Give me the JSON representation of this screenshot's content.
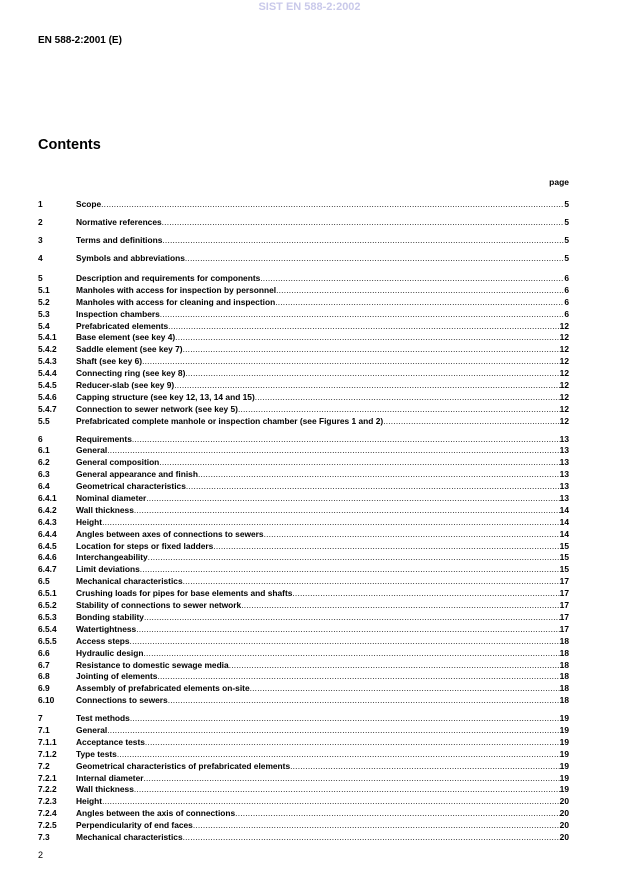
{
  "watermark": "SIST EN 588-2:2002",
  "doc_id": "EN 588-2:2001 (E)",
  "title": "Contents",
  "page_header": "page",
  "groups": [
    {
      "entries": [
        {
          "num": "1",
          "text": "Scope",
          "page": "5"
        },
        {
          "num": "2",
          "text": "Normative references",
          "page": "5"
        },
        {
          "num": "3",
          "text": "Terms and definitions",
          "page": "5"
        },
        {
          "num": "4",
          "text": "Symbols and abbreviations",
          "page": "5"
        }
      ]
    },
    {
      "entries": [
        {
          "num": "5",
          "text": "Description and requirements for components",
          "page": "6"
        },
        {
          "num": "5.1",
          "text": "Manholes with access for inspection by personnel",
          "page": "6"
        },
        {
          "num": "5.2",
          "text": "Manholes with access for cleaning and inspection",
          "page": "6"
        },
        {
          "num": "5.3",
          "text": "Inspection chambers",
          "page": "6"
        },
        {
          "num": "5.4",
          "text": "Prefabricated elements",
          "page": "12"
        },
        {
          "num": "5.4.1",
          "text": "Base element (see key 4)",
          "page": "12"
        },
        {
          "num": "5.4.2",
          "text": "Saddle element (see key 7)",
          "page": "12"
        },
        {
          "num": "5.4.3",
          "text": "Shaft (see key 6)",
          "page": "12"
        },
        {
          "num": "5.4.4",
          "text": "Connecting ring (see key 8)",
          "page": "12"
        },
        {
          "num": "5.4.5",
          "text": "Reducer-slab (see key 9)",
          "page": "12"
        },
        {
          "num": "5.4.6",
          "text": "Capping structure (see key 12, 13, 14 and 15)",
          "page": "12"
        },
        {
          "num": "5.4.7",
          "text": "Connection to sewer network (see key 5)",
          "page": "12"
        },
        {
          "num": "5.5",
          "text": "Prefabricated complete manhole or inspection chamber (see Figures 1 and 2)",
          "page": "12"
        }
      ]
    },
    {
      "entries": [
        {
          "num": "6",
          "text": "Requirements",
          "page": "13"
        },
        {
          "num": "6.1",
          "text": "General",
          "page": "13"
        },
        {
          "num": "6.2",
          "text": "General composition",
          "page": "13"
        },
        {
          "num": "6.3",
          "text": "General appearance and finish",
          "page": "13"
        },
        {
          "num": "6.4",
          "text": "Geometrical characteristics",
          "page": "13"
        },
        {
          "num": "6.4.1",
          "text": "Nominal diameter",
          "page": "13"
        },
        {
          "num": "6.4.2",
          "text": "Wall thickness",
          "page": "14"
        },
        {
          "num": "6.4.3",
          "text": "Height",
          "page": "14"
        },
        {
          "num": "6.4.4",
          "text": "Angles between axes of connections to sewers",
          "page": "14"
        },
        {
          "num": "6.4.5",
          "text": "Location for steps or fixed ladders",
          "page": "15"
        },
        {
          "num": "6.4.6",
          "text": "Interchangeability",
          "page": "15"
        },
        {
          "num": "6.4.7",
          "text": "Limit deviations",
          "page": "15"
        },
        {
          "num": "6.5",
          "text": "Mechanical characteristics",
          "page": "17"
        },
        {
          "num": "6.5.1",
          "text": "Crushing loads for pipes for base elements and shafts",
          "page": "17"
        },
        {
          "num": "6.5.2",
          "text": "Stability of connections to sewer network",
          "page": "17"
        },
        {
          "num": "6.5.3",
          "text": "Bonding stability",
          "page": "17"
        },
        {
          "num": "6.5.4",
          "text": "Watertightness",
          "page": "17"
        },
        {
          "num": "6.5.5",
          "text": "Access steps",
          "page": "18"
        },
        {
          "num": "6.6",
          "text": "Hydraulic design",
          "page": "18"
        },
        {
          "num": "6.7",
          "text": "Resistance to domestic sewage media",
          "page": "18"
        },
        {
          "num": "6.8",
          "text": "Jointing of elements",
          "page": "18"
        },
        {
          "num": "6.9",
          "text": "Assembly of prefabricated elements on-site",
          "page": "18"
        },
        {
          "num": "6.10",
          "text": "Connections to sewers",
          "page": "18"
        }
      ]
    },
    {
      "entries": [
        {
          "num": "7",
          "text": "Test methods",
          "page": "19"
        },
        {
          "num": "7.1",
          "text": "General",
          "page": "19"
        },
        {
          "num": "7.1.1",
          "text": "Acceptance tests",
          "page": "19"
        },
        {
          "num": "7.1.2",
          "text": "Type tests",
          "page": "19"
        },
        {
          "num": "7.2",
          "text": "Geometrical characteristics of prefabricated elements",
          "page": "19"
        },
        {
          "num": "7.2.1",
          "text": "Internal diameter",
          "page": "19"
        },
        {
          "num": "7.2.2",
          "text": "Wall thickness",
          "page": "19"
        },
        {
          "num": "7.2.3",
          "text": "Height",
          "page": "20"
        },
        {
          "num": "7.2.4",
          "text": "Angles between the axis of connections",
          "page": "20"
        },
        {
          "num": "7.2.5",
          "text": "Perpendicularity of end faces",
          "page": "20"
        },
        {
          "num": "7.3",
          "text": "Mechanical characteristics",
          "page": "20"
        }
      ]
    }
  ],
  "folio": "2"
}
